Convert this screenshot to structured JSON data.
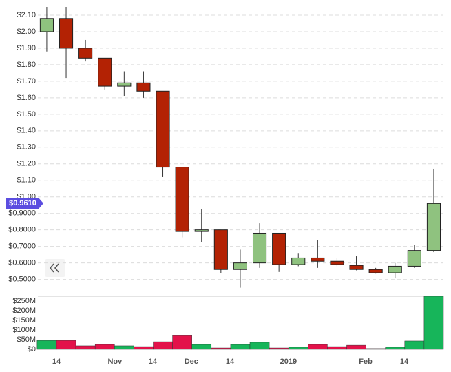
{
  "chart_data": {
    "type": "candlestick",
    "x": [
      0,
      1,
      2,
      3,
      4,
      5,
      6,
      7,
      8,
      9,
      10,
      11,
      12,
      13,
      14,
      15,
      16,
      17,
      18,
      19,
      20
    ],
    "open": [
      2.0,
      2.08,
      1.9,
      1.84,
      1.67,
      1.69,
      1.64,
      1.18,
      0.79,
      0.8,
      0.56,
      0.6,
      0.78,
      0.59,
      0.63,
      0.61,
      0.585,
      0.56,
      0.54,
      0.58,
      0.675
    ],
    "high": [
      2.15,
      2.15,
      1.95,
      1.84,
      1.76,
      1.76,
      1.64,
      1.18,
      0.925,
      0.8,
      0.68,
      0.84,
      0.78,
      0.66,
      0.74,
      0.63,
      0.64,
      0.57,
      0.6,
      0.71,
      1.17
    ],
    "low": [
      1.88,
      1.72,
      1.82,
      1.65,
      1.61,
      1.6,
      1.12,
      0.755,
      0.725,
      0.54,
      0.45,
      0.57,
      0.545,
      0.58,
      0.57,
      0.58,
      0.555,
      0.535,
      0.51,
      0.57,
      0.665
    ],
    "close": [
      2.08,
      1.9,
      1.84,
      1.67,
      1.69,
      1.64,
      1.18,
      0.79,
      0.8,
      0.56,
      0.6,
      0.78,
      0.59,
      0.63,
      0.61,
      0.59,
      0.56,
      0.54,
      0.58,
      0.675,
      0.96
    ],
    "up_color": "#8fc27f",
    "down_color": "#b32204",
    "xlim": [
      -0.46,
      20.5
    ],
    "xticks": [
      {
        "value": 0.5,
        "label": "14"
      },
      {
        "value": 3.52,
        "label": "Nov"
      },
      {
        "value": 5.48,
        "label": "14"
      },
      {
        "value": 7.47,
        "label": "Dec"
      },
      {
        "value": 9.47,
        "label": "14"
      },
      {
        "value": 12.49,
        "label": "2019"
      },
      {
        "value": 16.48,
        "label": "Feb"
      },
      {
        "value": 18.47,
        "label": "14"
      }
    ],
    "ylim": [
      0.44,
      2.15
    ],
    "yticks": [
      {
        "value": 2.1,
        "label": "$2.10"
      },
      {
        "value": 2.0,
        "label": "$2.00"
      },
      {
        "value": 1.9,
        "label": "$1.90"
      },
      {
        "value": 1.8,
        "label": "$1.80"
      },
      {
        "value": 1.7,
        "label": "$1.70"
      },
      {
        "value": 1.6,
        "label": "$1.60"
      },
      {
        "value": 1.5,
        "label": "$1.50"
      },
      {
        "value": 1.4,
        "label": "$1.40"
      },
      {
        "value": 1.3,
        "label": "$1.30"
      },
      {
        "value": 1.2,
        "label": "$1.20"
      },
      {
        "value": 1.1,
        "label": "$1.10"
      },
      {
        "value": 1.0,
        "label": "$1.00"
      },
      {
        "value": 0.9,
        "label": "$0.9000"
      },
      {
        "value": 0.8,
        "label": "$0.8000"
      },
      {
        "value": 0.7,
        "label": "$0.7000"
      },
      {
        "value": 0.6,
        "label": "$0.6000"
      },
      {
        "value": 0.5,
        "label": "$0.5000"
      }
    ],
    "grid": true,
    "last_price": {
      "value": 0.961,
      "label": "$0.9610"
    },
    "last_price_color": "#5b4de0",
    "volume": {
      "type": "bar",
      "values": [
        46000000,
        46000000,
        18000000,
        25000000,
        18000000,
        14000000,
        39000000,
        71000000,
        25000000,
        7000000,
        25000000,
        36000000,
        7000000,
        11000000,
        25000000,
        14000000,
        21000000,
        4000000,
        11000000,
        43000000,
        275000000
      ],
      "up_color": "#17b55a",
      "down_color": "#e3124a",
      "ylim": [
        0,
        275000000
      ],
      "yticks": [
        {
          "value": 0,
          "label": "$0"
        },
        {
          "value": 50000000,
          "label": "$50M"
        },
        {
          "value": 100000000,
          "label": "$100M"
        },
        {
          "value": 150000000,
          "label": "$150M"
        },
        {
          "value": 200000000,
          "label": "$200M"
        },
        {
          "value": 250000000,
          "label": "$250M"
        }
      ]
    }
  }
}
